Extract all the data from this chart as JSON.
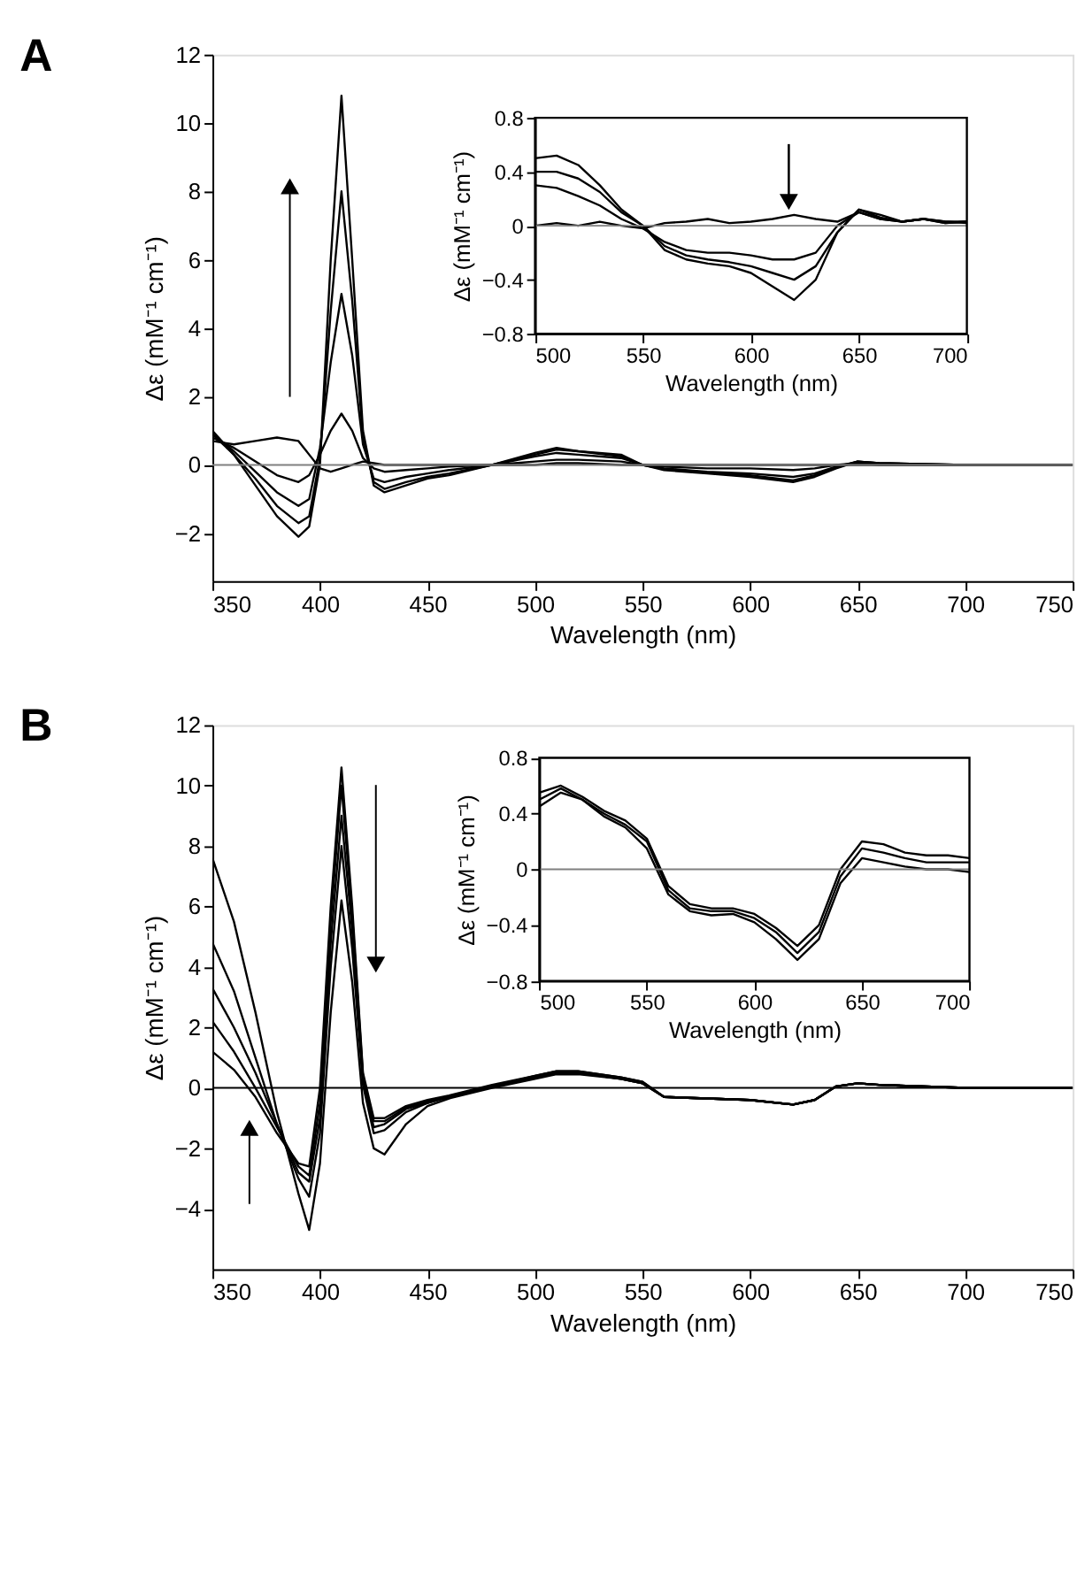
{
  "chart_data": [
    {
      "type": "line",
      "title": "A",
      "xlabel": "Wavelength (nm)",
      "ylabel": "Δε (mM⁻¹ cm⁻¹)",
      "xlim": [
        350,
        750
      ],
      "xticks": [
        350,
        400,
        450,
        500,
        550,
        600,
        650,
        700,
        750
      ],
      "ylim": [
        -3.4,
        12
      ],
      "yticks": [
        -2,
        0,
        2,
        4,
        6,
        8,
        10,
        12
      ],
      "grid": false,
      "legend": false,
      "marker": "none",
      "line_style": "solid",
      "x": [
        350,
        360,
        370,
        380,
        390,
        395,
        400,
        405,
        410,
        415,
        420,
        425,
        430,
        440,
        450,
        460,
        480,
        500,
        510,
        520,
        540,
        550,
        560,
        580,
        600,
        620,
        630,
        640,
        650,
        660,
        700,
        750
      ],
      "ref_lines": [
        {
          "axis": "y",
          "value": 0,
          "color": "#808080"
        }
      ],
      "series": [
        {
          "color": "#000000",
          "values": [
            0.7,
            0.6,
            0.7,
            0.8,
            0.7,
            0.3,
            -0.1,
            -0.2,
            -0.1,
            0,
            0.1,
            0.05,
            0,
            0,
            0,
            0,
            0,
            0,
            0.05,
            0.05,
            0,
            0,
            0,
            0,
            0,
            0,
            0,
            0,
            0,
            0,
            0,
            0
          ]
        },
        {
          "color": "#000000",
          "values": [
            0.8,
            0.5,
            0.1,
            -0.3,
            -0.5,
            -0.3,
            0.3,
            1.0,
            1.5,
            1.0,
            0.2,
            -0.1,
            -0.2,
            -0.15,
            -0.1,
            -0.05,
            0,
            0.1,
            0.15,
            0.15,
            0.1,
            0,
            -0.05,
            -0.1,
            -0.1,
            -0.15,
            -0.1,
            0,
            0.05,
            0,
            0,
            0
          ]
        },
        {
          "color": "#000000",
          "values": [
            0.9,
            0.4,
            -0.2,
            -0.8,
            -1.2,
            -1.0,
            0.5,
            3.0,
            5.0,
            3.2,
            0.6,
            -0.4,
            -0.5,
            -0.35,
            -0.25,
            -0.15,
            0,
            0.25,
            0.35,
            0.3,
            0.2,
            0,
            -0.1,
            -0.2,
            -0.25,
            -0.35,
            -0.25,
            -0.05,
            0.1,
            0.05,
            0,
            0
          ]
        },
        {
          "color": "#000000",
          "values": [
            0.9,
            0.3,
            -0.4,
            -1.2,
            -1.7,
            -1.5,
            0.2,
            4.5,
            8.0,
            4.8,
            0.8,
            -0.5,
            -0.7,
            -0.5,
            -0.35,
            -0.25,
            0,
            0.3,
            0.45,
            0.4,
            0.25,
            0,
            -0.12,
            -0.22,
            -0.3,
            -0.45,
            -0.3,
            -0.08,
            0.1,
            0.05,
            0,
            0
          ]
        },
        {
          "color": "#000000",
          "values": [
            1.0,
            0.3,
            -0.6,
            -1.5,
            -2.1,
            -1.8,
            0,
            6.0,
            10.8,
            6.0,
            1.0,
            -0.6,
            -0.8,
            -0.6,
            -0.4,
            -0.3,
            0,
            0.35,
            0.5,
            0.4,
            0.3,
            0,
            -0.15,
            -0.25,
            -0.35,
            -0.5,
            -0.35,
            -0.1,
            0.1,
            0.05,
            0,
            0
          ]
        }
      ]
    },
    {
      "type": "line",
      "xlabel": "Wavelength (nm)",
      "ylabel": "Δε (mM⁻¹ cm⁻¹)",
      "xlim": [
        500,
        700
      ],
      "xticks": [
        500,
        550,
        600,
        650,
        700
      ],
      "ylim": [
        -0.8,
        0.8
      ],
      "yticks": [
        -0.8,
        -0.4,
        0,
        0.4,
        0.8
      ],
      "grid": false,
      "legend": false,
      "marker": "none",
      "line_style": "solid",
      "x": [
        500,
        510,
        520,
        530,
        540,
        550,
        560,
        570,
        580,
        590,
        600,
        610,
        620,
        630,
        640,
        650,
        660,
        670,
        680,
        690,
        700
      ],
      "ref_lines": [
        {
          "axis": "y",
          "value": 0,
          "color": "#808080"
        }
      ],
      "series": [
        {
          "color": "#000000",
          "values": [
            0,
            0.02,
            0,
            0.03,
            0,
            -0.02,
            0.02,
            0.03,
            0.05,
            0.02,
            0.03,
            0.05,
            0.08,
            0.05,
            0.03,
            0.1,
            0.05,
            0.03,
            0.05,
            0.02,
            0.03
          ]
        },
        {
          "color": "#000000",
          "values": [
            0.3,
            0.28,
            0.22,
            0.15,
            0.05,
            -0.02,
            -0.12,
            -0.18,
            -0.2,
            -0.2,
            -0.22,
            -0.25,
            -0.25,
            -0.2,
            0,
            0.1,
            0.05,
            0.03,
            0.05,
            0.02,
            0.03
          ]
        },
        {
          "color": "#000000",
          "values": [
            0.4,
            0.4,
            0.35,
            0.25,
            0.1,
            0,
            -0.15,
            -0.22,
            -0.25,
            -0.27,
            -0.3,
            -0.35,
            -0.4,
            -0.3,
            -0.05,
            0.12,
            0.06,
            0.03,
            0.05,
            0.03,
            0.02
          ]
        },
        {
          "color": "#000000",
          "values": [
            0.5,
            0.52,
            0.45,
            0.3,
            0.12,
            0,
            -0.18,
            -0.25,
            -0.28,
            -0.3,
            -0.35,
            -0.45,
            -0.55,
            -0.4,
            -0.05,
            0.12,
            0.08,
            0.03,
            0.05,
            0.03,
            0.03
          ]
        }
      ]
    },
    {
      "type": "line",
      "title": "B",
      "xlabel": "Wavelength (nm)",
      "ylabel": "Δε (mM⁻¹ cm⁻¹)",
      "xlim": [
        350,
        750
      ],
      "xticks": [
        350,
        400,
        450,
        500,
        550,
        600,
        650,
        700,
        750
      ],
      "ylim": [
        -6,
        12
      ],
      "yticks": [
        -4,
        -2,
        0,
        2,
        4,
        6,
        8,
        10,
        12
      ],
      "grid": false,
      "legend": false,
      "marker": "none",
      "line_style": "solid",
      "x": [
        350,
        360,
        370,
        380,
        390,
        395,
        400,
        405,
        410,
        415,
        420,
        425,
        430,
        440,
        450,
        460,
        480,
        500,
        510,
        520,
        540,
        550,
        560,
        580,
        600,
        620,
        630,
        640,
        650,
        660,
        700,
        750
      ],
      "ref_lines": [
        {
          "axis": "y",
          "value": 0,
          "color": "#000000"
        }
      ],
      "series": [
        {
          "color": "#000000",
          "values": [
            1.2,
            0.6,
            -0.3,
            -1.5,
            -2.5,
            -2.6,
            0,
            6,
            10.6,
            6,
            0.5,
            -1.0,
            -1.0,
            -0.6,
            -0.4,
            -0.25,
            0.1,
            0.4,
            0.55,
            0.55,
            0.35,
            0.2,
            -0.3,
            -0.35,
            -0.4,
            -0.55,
            -0.4,
            0.05,
            0.15,
            0.1,
            0,
            0
          ]
        },
        {
          "color": "#000000",
          "values": [
            2.2,
            1.2,
            0,
            -1.3,
            -2.6,
            -2.9,
            -0.5,
            5.5,
            10,
            5.7,
            0.4,
            -1.1,
            -1.1,
            -0.65,
            -0.45,
            -0.3,
            0.05,
            0.4,
            0.55,
            0.55,
            0.35,
            0.2,
            -0.3,
            -0.35,
            -0.4,
            -0.55,
            -0.4,
            0.05,
            0.15,
            0.1,
            0,
            0
          ]
        },
        {
          "color": "#000000",
          "values": [
            3.3,
            2.0,
            0.5,
            -1.2,
            -2.8,
            -3.1,
            -1.0,
            4.8,
            9,
            5.2,
            0.3,
            -1.3,
            -1.2,
            -0.7,
            -0.5,
            -0.3,
            0.05,
            0.35,
            0.5,
            0.5,
            0.3,
            0.15,
            -0.3,
            -0.35,
            -0.4,
            -0.55,
            -0.4,
            0.05,
            0.15,
            0.1,
            0,
            0
          ]
        },
        {
          "color": "#000000",
          "values": [
            4.8,
            3.2,
            1.0,
            -1.2,
            -3.0,
            -3.6,
            -1.5,
            4.0,
            8,
            4.6,
            0.1,
            -1.5,
            -1.4,
            -0.8,
            -0.5,
            -0.3,
            0.05,
            0.35,
            0.5,
            0.5,
            0.3,
            0.15,
            -0.3,
            -0.35,
            -0.4,
            -0.55,
            -0.4,
            0.05,
            0.15,
            0.1,
            0,
            0
          ]
        },
        {
          "color": "#000000",
          "values": [
            7.6,
            5.5,
            2.5,
            -0.8,
            -3.5,
            -4.7,
            -2.5,
            2.5,
            6.2,
            3.5,
            -0.5,
            -2.0,
            -2.2,
            -1.2,
            -0.6,
            -0.35,
            0,
            0.3,
            0.45,
            0.45,
            0.3,
            0.15,
            -0.3,
            -0.35,
            -0.4,
            -0.55,
            -0.4,
            0.05,
            0.15,
            0.1,
            0,
            0
          ]
        }
      ]
    },
    {
      "type": "line",
      "xlabel": "Wavelength (nm)",
      "ylabel": "Δε (mM⁻¹ cm⁻¹)",
      "xlim": [
        500,
        700
      ],
      "xticks": [
        500,
        550,
        600,
        650,
        700
      ],
      "ylim": [
        -0.8,
        0.8
      ],
      "yticks": [
        -0.8,
        -0.4,
        0,
        0.4,
        0.8
      ],
      "grid": false,
      "legend": false,
      "marker": "none",
      "line_style": "solid",
      "x": [
        500,
        510,
        520,
        530,
        540,
        550,
        560,
        570,
        580,
        590,
        600,
        610,
        620,
        630,
        640,
        650,
        660,
        670,
        680,
        690,
        700
      ],
      "ref_lines": [
        {
          "axis": "y",
          "value": 0,
          "color": "#808080"
        }
      ],
      "series": [
        {
          "color": "#000000",
          "values": [
            0.5,
            0.58,
            0.5,
            0.4,
            0.32,
            0.2,
            -0.15,
            -0.28,
            -0.3,
            -0.3,
            -0.35,
            -0.45,
            -0.6,
            -0.45,
            -0.05,
            0.15,
            0.12,
            0.08,
            0.05,
            0.05,
            0.05
          ]
        },
        {
          "color": "#000000",
          "values": [
            0.45,
            0.55,
            0.5,
            0.38,
            0.3,
            0.15,
            -0.18,
            -0.3,
            -0.33,
            -0.32,
            -0.38,
            -0.5,
            -0.65,
            -0.5,
            -0.1,
            0.08,
            0.05,
            0.02,
            0,
            0,
            -0.02
          ]
        },
        {
          "color": "#000000",
          "values": [
            0.55,
            0.6,
            0.52,
            0.42,
            0.35,
            0.22,
            -0.12,
            -0.25,
            -0.28,
            -0.28,
            -0.32,
            -0.42,
            -0.55,
            -0.4,
            0,
            0.2,
            0.18,
            0.12,
            0.1,
            0.1,
            0.08
          ]
        }
      ]
    }
  ]
}
